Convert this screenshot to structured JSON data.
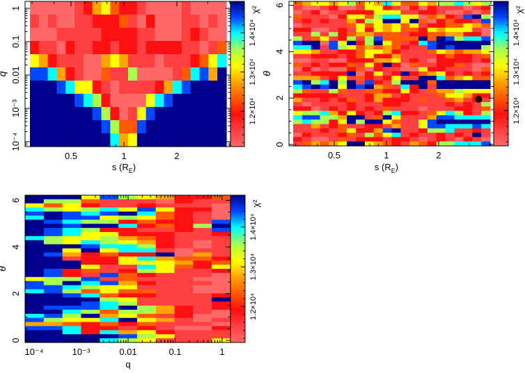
{
  "colorbar": {
    "label": "χ²",
    "range": [
      11100,
      14800
    ],
    "ticks": [
      {
        "value": 12000,
        "label": "1.2×10⁴"
      },
      {
        "value": 13000,
        "label": "1.3×10⁴"
      },
      {
        "value": 14000,
        "label": "1.4×10⁴"
      }
    ],
    "colors": [
      "#ff6868",
      "#ff4040",
      "#ff1010",
      "#ff5a00",
      "#ffa400",
      "#ffff00",
      "#a8ff50",
      "#00ffff",
      "#0048ff",
      "#00008c"
    ]
  },
  "chart_data": [
    {
      "type": "heatmap",
      "id": "s-q",
      "xlabel": "s (R",
      "xlabel_sub": "E",
      "xlabel_end": ")",
      "ylabel": "q",
      "xscale": "log",
      "yscale": "log",
      "xlim": [
        0.28,
        4.0
      ],
      "ylim": [
        7e-05,
        1.6
      ],
      "xticks": [
        {
          "value": 0.5,
          "label": "0.5"
        },
        {
          "value": 1,
          "label": "1"
        },
        {
          "value": 2,
          "label": "2"
        }
      ],
      "yticks": [
        {
          "value": 1,
          "label": "1"
        },
        {
          "value": 0.1,
          "label": "0.1"
        },
        {
          "value": 0.01,
          "label": "0.01"
        },
        {
          "value": 0.001,
          "label": "10⁻³"
        },
        {
          "value": 0.0001,
          "label": "10⁻⁴"
        }
      ],
      "value_encoding": "chi2 = 11100 + code*(14800-11100)/9, rows top (high y) to bottom",
      "rows": [
        "0000012453221000010000",
        "1010011222310200011010",
        "0001111122221100012100",
        "2110211221221222211013",
        "5421110045411101112357",
        "8874210031160000137849",
        "9998755210111124789999",
        "9999987620000578999999",
        "9999999862015899999999",
        "9999999986338999999999",
        "9999999997459999999999"
      ]
    },
    {
      "type": "heatmap",
      "id": "s-theta",
      "xlabel": "s (R",
      "xlabel_sub": "E",
      "xlabel_end": ")",
      "ylabel": "θ",
      "xscale": "log",
      "yscale": "linear",
      "xlim": [
        0.28,
        4.0
      ],
      "ylim": [
        0,
        6.28
      ],
      "xticks": [
        {
          "value": 0.5,
          "label": "0.5"
        },
        {
          "value": 1,
          "label": "1"
        },
        {
          "value": 2,
          "label": "2"
        }
      ],
      "yticks": [
        {
          "value": 0,
          "label": "0"
        },
        {
          "value": 2,
          "label": "2"
        },
        {
          "value": 4,
          "label": "4"
        },
        {
          "value": 6,
          "label": "6"
        }
      ],
      "best_fit_marker": {
        "s": 3.4,
        "theta": 1.95
      },
      "rows": [
        "3455456354753354667656",
        "1001200155210202111012",
        "0120112225551122100101",
        "3111025536775503421896",
        "1212114265995930232218",
        "0111113535453512233543",
        "2200121525453325455510",
        "1161623441331223344220",
        "6135126168333393986778",
        "8990859269531278999999",
        "7791865343432118989996",
        "5541122355421113543445",
        "1122212352241111232213",
        "0011002224451210222212",
        "3121223152920311223100",
        "0201002302110052211103",
        "1122229025129234521212",
        "4441251321251199734533",
        "8967969182169993999999",
        "7898959894317291999999",
        "6311631133225213446555",
        "2222211124412111355422",
        "4112123124222131134121",
        "1011112111221111121216",
        "2201212121311101112213",
        "5667425212672213576216",
        "7886649913951114887777",
        "6766259699531158999999",
        "1141231122141158877787",
        "1112135224891126671121",
        "0211123163571211212191",
        "2100131222122101210210",
        "1343459954321432667778"
      ]
    },
    {
      "type": "heatmap",
      "id": "q-theta",
      "xlabel": "q",
      "xlabel_sub": "",
      "xlabel_end": "",
      "ylabel": "θ",
      "xscale": "log",
      "yscale": "linear",
      "xlim": [
        6.5e-05,
        3.0
      ],
      "ylim": [
        0,
        6.28
      ],
      "xticks": [
        {
          "value": 0.0001,
          "label": "10⁻⁴"
        },
        {
          "value": 0.001,
          "label": "10⁻³"
        },
        {
          "value": 0.01,
          "label": "0.01"
        },
        {
          "value": 0.1,
          "label": "0.1"
        },
        {
          "value": 1,
          "label": "1"
        }
      ],
      "yticks": [
        {
          "value": 0,
          "label": "0"
        },
        {
          "value": 2,
          "label": "2"
        },
        {
          "value": 4,
          "label": "4"
        },
        {
          "value": 6,
          "label": "6"
        }
      ],
      "rows": [
        "99958654223",
        "96631110211",
        "53521121110",
        "76567585220",
        "89878973210",
        "79885653210",
        "98766232218",
        "99899723269",
        "98762211218",
        "98755222112",
        "76556432111",
        "96576542101",
        "99987762101",
        "99595771011",
        "98423229041",
        "99122574332",
        "99922555423",
        "99951175325",
        "98231265112",
        "98218321110",
        "56681311100",
        "86978421110",
        "88765511100",
        "78635331100",
        "99873221112",
        "99996511119",
        "99987611112",
        "98887964212",
        "99763664210",
        "78694531200",
        "86557954101",
        "44323231110",
        "88722121002",
        "99727452111",
        "99999865111",
        "99997651115"
      ]
    }
  ]
}
